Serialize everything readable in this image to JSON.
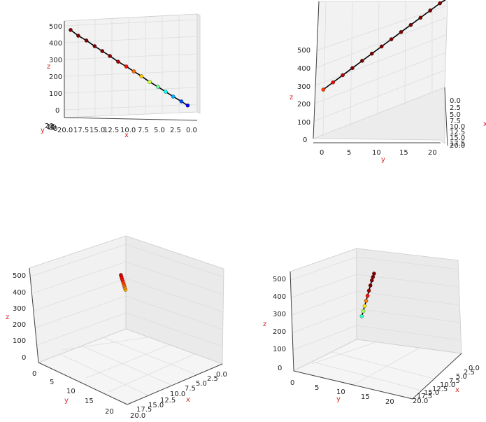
{
  "figure": {
    "label_color": "#d62728"
  },
  "chart_data": [
    {
      "type": "scatter3d",
      "view": "top-left",
      "xlabel": "x",
      "ylabel": "y",
      "zlabel": "z",
      "xlim": [
        0,
        21
      ],
      "ylim": [
        0,
        21
      ],
      "zlim": [
        0,
        520
      ],
      "x_ticks": [
        "20.0",
        "17.5",
        "15.0",
        "12.5",
        "10.0",
        "7.5",
        "5.0",
        "2.5",
        "0.0"
      ],
      "z_ticks": [
        "500",
        "400",
        "300",
        "200",
        "100",
        "0"
      ],
      "y_ticks": [
        "20",
        "15",
        "10",
        "5",
        "0"
      ],
      "colormap": "jet",
      "series": [
        {
          "points": [
            {
              "x": 20.0,
              "y": 20.0,
              "z": 505
            },
            {
              "x": 18.8,
              "y": 18.8,
              "z": 470
            },
            {
              "x": 17.5,
              "y": 17.5,
              "z": 440
            },
            {
              "x": 16.2,
              "y": 16.2,
              "z": 405
            },
            {
              "x": 15.0,
              "y": 15.0,
              "z": 375
            },
            {
              "x": 13.8,
              "y": 13.8,
              "z": 345
            },
            {
              "x": 12.5,
              "y": 12.5,
              "z": 310
            },
            {
              "x": 11.2,
              "y": 11.2,
              "z": 280
            },
            {
              "x": 10.0,
              "y": 10.0,
              "z": 250
            },
            {
              "x": 8.8,
              "y": 8.8,
              "z": 220
            },
            {
              "x": 7.5,
              "y": 7.5,
              "z": 185
            },
            {
              "x": 6.2,
              "y": 6.2,
              "z": 155
            },
            {
              "x": 5.0,
              "y": 5.0,
              "z": 125
            },
            {
              "x": 3.8,
              "y": 3.8,
              "z": 95
            },
            {
              "x": 2.5,
              "y": 2.5,
              "z": 65
            },
            {
              "x": 1.5,
              "y": 1.5,
              "z": 40
            }
          ]
        }
      ]
    },
    {
      "type": "scatter3d",
      "view": "top-right",
      "xlabel": "x",
      "ylabel": "y",
      "zlabel": "z",
      "xlim": [
        0,
        21
      ],
      "ylim": [
        0,
        21
      ],
      "zlim": [
        0,
        520
      ],
      "y_ticks": [
        "0",
        "5",
        "10",
        "15",
        "20"
      ],
      "z_ticks": [
        "0",
        "100",
        "200",
        "300",
        "400",
        "500"
      ],
      "x_ticks": [
        "0.0",
        "2.5",
        "5.0",
        "7.5",
        "10.0",
        "12.5",
        "15.0",
        "17.5",
        "20.0"
      ],
      "colormap": "jet",
      "series": [
        {
          "points": [
            {
              "x": 1.0,
              "y": 1.0,
              "z": 265
            },
            {
              "x": 2.5,
              "y": 2.5,
              "z": 285
            },
            {
              "x": 4.0,
              "y": 4.0,
              "z": 305
            },
            {
              "x": 5.5,
              "y": 5.5,
              "z": 325
            },
            {
              "x": 7.0,
              "y": 7.0,
              "z": 345
            },
            {
              "x": 8.5,
              "y": 8.5,
              "z": 365
            },
            {
              "x": 10.0,
              "y": 10.0,
              "z": 385
            },
            {
              "x": 11.5,
              "y": 11.5,
              "z": 405
            },
            {
              "x": 13.0,
              "y": 13.0,
              "z": 425
            },
            {
              "x": 14.5,
              "y": 14.5,
              "z": 445
            },
            {
              "x": 16.0,
              "y": 16.0,
              "z": 465
            },
            {
              "x": 17.5,
              "y": 17.5,
              "z": 485
            },
            {
              "x": 19.0,
              "y": 19.0,
              "z": 505
            },
            {
              "x": 20.5,
              "y": 20.5,
              "z": 520
            }
          ]
        }
      ]
    },
    {
      "type": "scatter3d",
      "view": "bottom-left",
      "xlabel": "x",
      "ylabel": "y",
      "zlabel": "z",
      "xlim": [
        0,
        21
      ],
      "ylim": [
        0,
        21
      ],
      "zlim": [
        0,
        520
      ],
      "z_ticks": [
        "500",
        "400",
        "300",
        "200",
        "100",
        "0"
      ],
      "y_ticks": [
        "0",
        "5",
        "10",
        "15",
        "20"
      ],
      "x_ticks": [
        "0.0",
        "2.5",
        "5.0",
        "7.5",
        "10.0",
        "12.5",
        "15.0",
        "17.5",
        "20.0"
      ],
      "colormap": "jet",
      "series": [
        {
          "points": [
            {
              "x": 1.0,
              "y": 1.0,
              "z": 230
            },
            {
              "x": 2.0,
              "y": 1.5,
              "z": 240
            },
            {
              "x": 3.0,
              "y": 2.0,
              "z": 250
            },
            {
              "x": 4.0,
              "y": 2.5,
              "z": 260
            },
            {
              "x": 5.0,
              "y": 3.0,
              "z": 270
            },
            {
              "x": 6.0,
              "y": 3.5,
              "z": 280
            },
            {
              "x": 7.0,
              "y": 4.0,
              "z": 290
            },
            {
              "x": 8.0,
              "y": 4.5,
              "z": 300
            }
          ]
        }
      ]
    },
    {
      "type": "scatter3d",
      "view": "bottom-right",
      "xlabel": "x",
      "ylabel": "y",
      "zlabel": "z",
      "xlim": [
        0,
        21
      ],
      "ylim": [
        0,
        21
      ],
      "zlim": [
        0,
        520
      ],
      "z_ticks": [
        "500",
        "400",
        "300",
        "200",
        "100",
        "0"
      ],
      "y_ticks": [
        "0",
        "5",
        "10",
        "15",
        "20"
      ],
      "x_ticks": [
        "0.0",
        "2.5",
        "5.0",
        "7.5",
        "10.0",
        "12.5",
        "15.0",
        "17.5",
        "20.0"
      ],
      "colormap": "jet",
      "series": [
        {
          "points": [
            {
              "x": 2.0,
              "y": 2.0,
              "z": 140
            },
            {
              "x": 3.5,
              "y": 3.5,
              "z": 175
            },
            {
              "x": 5.0,
              "y": 5.0,
              "z": 210
            },
            {
              "x": 6.5,
              "y": 6.5,
              "z": 245
            },
            {
              "x": 8.0,
              "y": 8.0,
              "z": 280
            },
            {
              "x": 9.5,
              "y": 9.5,
              "z": 315
            },
            {
              "x": 11.0,
              "y": 11.0,
              "z": 350
            },
            {
              "x": 12.5,
              "y": 12.5,
              "z": 385
            },
            {
              "x": 14.0,
              "y": 14.0,
              "z": 410
            },
            {
              "x": 15.5,
              "y": 15.5,
              "z": 435
            }
          ]
        }
      ]
    }
  ]
}
